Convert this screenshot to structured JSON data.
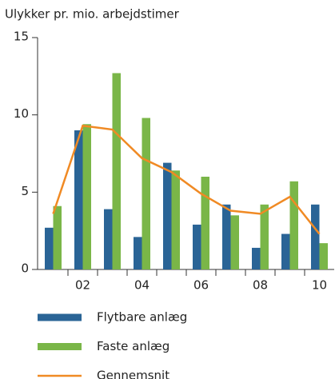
{
  "chart_data": {
    "type": "bar",
    "title": "Ulykker pr. mio. arbejdstimer",
    "categories": [
      null,
      "02",
      null,
      "04",
      null,
      "06",
      null,
      "08",
      null,
      "10"
    ],
    "series": [
      {
        "name": "Flytbare anlæg",
        "color": "#2a6496",
        "values": [
          2.7,
          9.0,
          3.9,
          2.1,
          6.9,
          2.9,
          4.2,
          1.4,
          2.3,
          4.2
        ]
      },
      {
        "name": "Faste anlæg",
        "color": "#7ab648",
        "values": [
          4.1,
          9.4,
          12.7,
          9.8,
          6.4,
          6.0,
          3.5,
          4.2,
          5.7,
          1.7
        ]
      },
      {
        "name": "Gennemsnit",
        "color": "#f08a24",
        "type": "line",
        "values": [
          3.6,
          9.3,
          9.05,
          7.2,
          6.3,
          4.9,
          3.8,
          3.6,
          4.7,
          2.3
        ]
      }
    ],
    "ylim": [
      0,
      15
    ],
    "yticks": [
      0,
      5,
      10,
      15
    ]
  }
}
